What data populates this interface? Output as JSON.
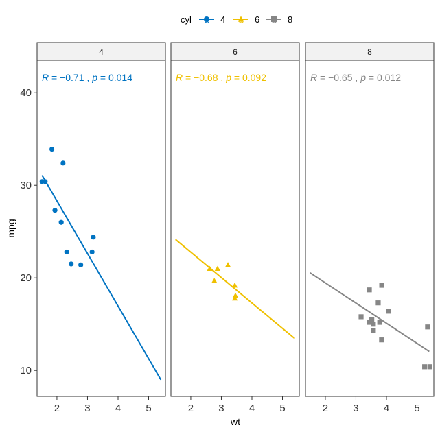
{
  "chart_data": {
    "type": "scatter",
    "xlabel": "wt",
    "ylabel": "mpg",
    "xlim": [
      1.35,
      5.55
    ],
    "ylim": [
      7.2,
      43.5
    ],
    "xticks": [
      2,
      3,
      4,
      5
    ],
    "yticks": [
      10,
      20,
      30,
      40
    ],
    "legend": {
      "title": "cyl",
      "position": "top",
      "symbol_text": "a"
    },
    "panels": [
      {
        "name": "4",
        "strip_label": "4",
        "color": "#0073C2",
        "shape": "circle",
        "stat": {
          "r_label": "R",
          "r_value": " = −0.71",
          "sep": " , ",
          "p_label": "p",
          "p_value": " = 0.014"
        },
        "fit": {
          "x": [
            1.513,
            5.4
          ],
          "y": [
            31.08,
            9.0
          ]
        },
        "points": [
          {
            "x": 1.513,
            "y": 30.4
          },
          {
            "x": 1.615,
            "y": 30.4
          },
          {
            "x": 1.835,
            "y": 33.9
          },
          {
            "x": 1.935,
            "y": 27.3
          },
          {
            "x": 2.14,
            "y": 26.0
          },
          {
            "x": 2.2,
            "y": 32.4
          },
          {
            "x": 2.32,
            "y": 22.8
          },
          {
            "x": 2.465,
            "y": 21.5
          },
          {
            "x": 2.78,
            "y": 21.4
          },
          {
            "x": 3.15,
            "y": 22.8
          },
          {
            "x": 3.19,
            "y": 24.4
          }
        ]
      },
      {
        "name": "6",
        "strip_label": "6",
        "color": "#EFC000",
        "shape": "triangle",
        "stat": {
          "r_label": "R",
          "r_value": " = −0.68",
          "sep": " , ",
          "p_label": "p",
          "p_value": " = 0.092"
        },
        "fit": {
          "x": [
            1.5,
            5.4
          ],
          "y": [
            24.15,
            13.45
          ]
        },
        "points": [
          {
            "x": 2.62,
            "y": 21.0
          },
          {
            "x": 2.77,
            "y": 19.7
          },
          {
            "x": 2.875,
            "y": 21.0
          },
          {
            "x": 3.215,
            "y": 21.4
          },
          {
            "x": 3.44,
            "y": 19.2
          },
          {
            "x": 3.44,
            "y": 17.8
          },
          {
            "x": 3.46,
            "y": 18.1
          }
        ]
      },
      {
        "name": "8",
        "strip_label": "8",
        "color": "#868686",
        "shape": "square",
        "stat": {
          "r_label": "R",
          "r_value": " = −0.65",
          "sep": " , ",
          "p_label": "p",
          "p_value": " = 0.012"
        },
        "fit": {
          "x": [
            1.5,
            5.4
          ],
          "y": [
            20.55,
            12.05
          ]
        },
        "points": [
          {
            "x": 3.17,
            "y": 15.8
          },
          {
            "x": 3.435,
            "y": 15.2
          },
          {
            "x": 3.44,
            "y": 18.7
          },
          {
            "x": 3.52,
            "y": 15.5
          },
          {
            "x": 3.57,
            "y": 14.3
          },
          {
            "x": 3.57,
            "y": 15.0
          },
          {
            "x": 3.73,
            "y": 17.3
          },
          {
            "x": 3.78,
            "y": 15.2
          },
          {
            "x": 3.84,
            "y": 13.3
          },
          {
            "x": 3.845,
            "y": 19.2
          },
          {
            "x": 4.07,
            "y": 16.4
          },
          {
            "x": 5.25,
            "y": 10.4
          },
          {
            "x": 5.345,
            "y": 14.7
          },
          {
            "x": 5.424,
            "y": 10.4
          }
        ]
      }
    ]
  }
}
